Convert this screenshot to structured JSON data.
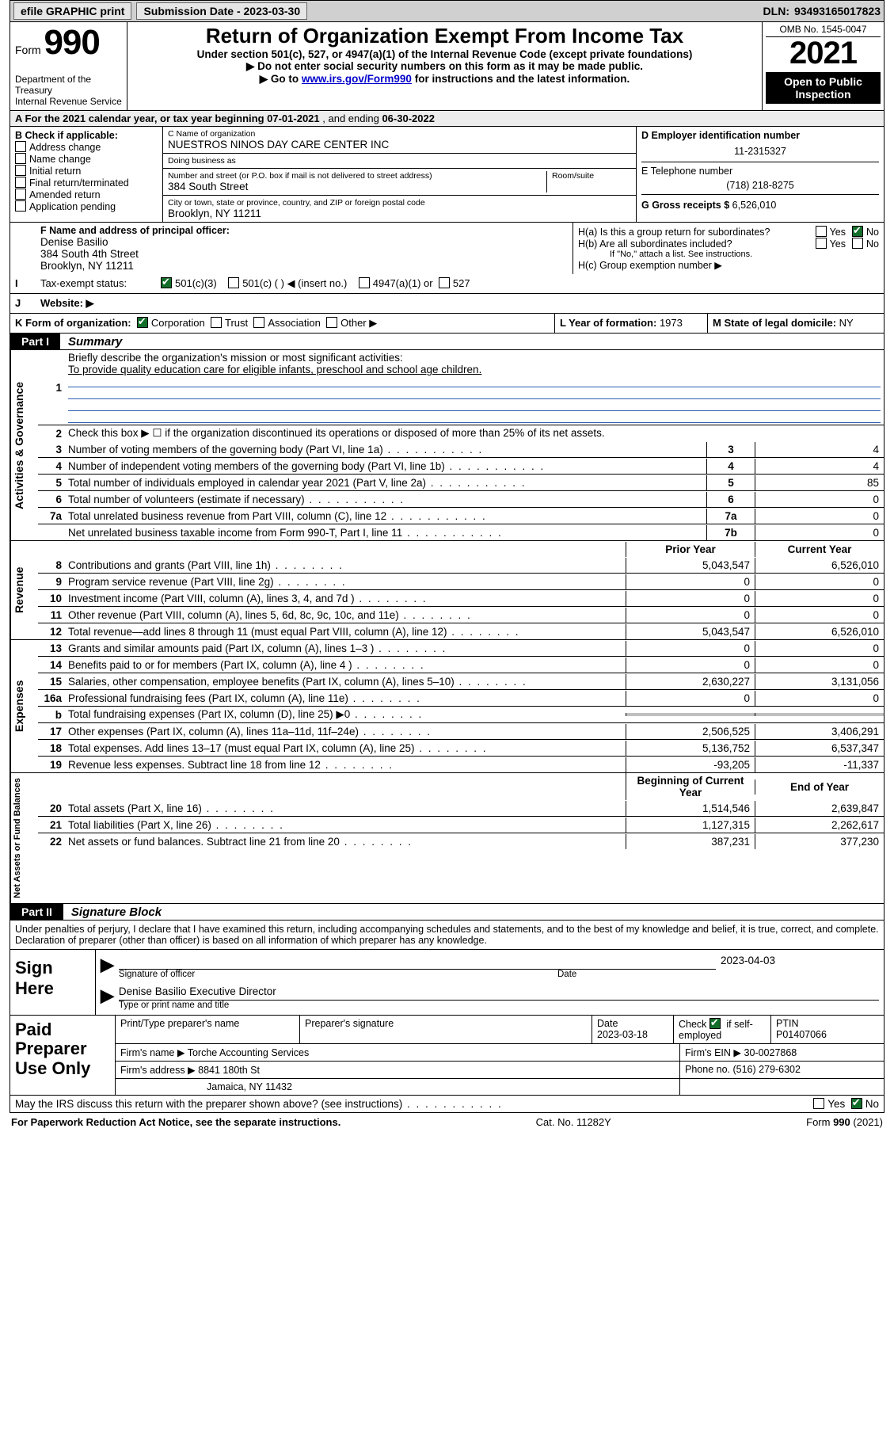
{
  "topbar": {
    "efile": "efile GRAPHIC print",
    "submission_label": "Submission Date",
    "submission_date": "2023-03-30",
    "dln_label": "DLN:",
    "dln": "93493165017823"
  },
  "header": {
    "form_word": "Form",
    "form_number": "990",
    "dept": "Department of the Treasury\nInternal Revenue Service",
    "title": "Return of Organization Exempt From Income Tax",
    "sub1": "Under section 501(c), 527, or 4947(a)(1) of the Internal Revenue Code (except private foundations)",
    "sub2": "Do not enter social security numbers on this form as it may be made public.",
    "sub3_pre": "Go to ",
    "sub3_link": "www.irs.gov/Form990",
    "sub3_post": " for instructions and the latest information.",
    "omb": "OMB No. 1545-0047",
    "year": "2021",
    "open": "Open to Public Inspection"
  },
  "rowA": {
    "text_pre": "A For the 2021 calendar year, or tax year beginning ",
    "begin": "07-01-2021",
    "mid": " , and ending ",
    "end": "06-30-2022"
  },
  "boxB": {
    "title": "B Check if applicable:",
    "items": [
      "Address change",
      "Name change",
      "Initial return",
      "Final return/terminated",
      "Amended return",
      "Application pending"
    ]
  },
  "boxC": {
    "label_name": "C Name of organization",
    "org_name": "NUESTROS NINOS DAY CARE CENTER INC",
    "dba_label": "Doing business as",
    "dba": "",
    "street_label": "Number and street (or P.O. box if mail is not delivered to street address)",
    "room_label": "Room/suite",
    "street": "384 South Street",
    "city_label": "City or town, state or province, country, and ZIP or foreign postal code",
    "city": "Brooklyn, NY  11211"
  },
  "boxD": {
    "label": "D Employer identification number",
    "ein": "11-2315327"
  },
  "boxE": {
    "label": "E Telephone number",
    "phone": "(718) 218-8275"
  },
  "boxG": {
    "label": "G Gross receipts $",
    "val": "6,526,010"
  },
  "boxF": {
    "label": "F Name and address of principal officer:",
    "line1": "Denise Basilio",
    "line2": "384 South 4th Street",
    "line3": "Brooklyn, NY  11211"
  },
  "boxH": {
    "h_a": "H(a)  Is this a group return for subordinates?",
    "h_b": "H(b)  Are all subordinates included?",
    "h_note": "If \"No,\" attach a list. See instructions.",
    "h_c": "H(c)  Group exemption number ▶",
    "yes": "Yes",
    "no": "No"
  },
  "boxI": {
    "label": "Tax-exempt status:",
    "opt1": "501(c)(3)",
    "opt2": "501(c) (  ) ◀ (insert no.)",
    "opt3": "4947(a)(1) or",
    "opt4": "527"
  },
  "boxJ": {
    "label": "Website: ▶"
  },
  "boxK": {
    "label": "K Form of organization:",
    "opts": [
      "Corporation",
      "Trust",
      "Association",
      "Other ▶"
    ]
  },
  "boxL": {
    "label": "L Year of formation:",
    "val": "1973"
  },
  "boxM": {
    "label": "M State of legal domicile:",
    "val": "NY"
  },
  "partI": {
    "tag": "Part I",
    "title": "Summary"
  },
  "summary": {
    "sectionA": "Activities & Governance",
    "sectionR": "Revenue",
    "sectionE": "Expenses",
    "sectionN": "Net Assets or Fund Balances",
    "l1_label": "Briefly describe the organization's mission or most significant activities:",
    "l1_text": "To provide quality education care for eligible infants, preschool and school age children.",
    "l2": "Check this box ▶ ☐  if the organization discontinued its operations or disposed of more than 25% of its net assets.",
    "lines_ag": [
      {
        "n": "3",
        "t": "Number of voting members of the governing body (Part VI, line 1a)",
        "box": "3",
        "v": "4"
      },
      {
        "n": "4",
        "t": "Number of independent voting members of the governing body (Part VI, line 1b)",
        "box": "4",
        "v": "4"
      },
      {
        "n": "5",
        "t": "Total number of individuals employed in calendar year 2021 (Part V, line 2a)",
        "box": "5",
        "v": "85"
      },
      {
        "n": "6",
        "t": "Total number of volunteers (estimate if necessary)",
        "box": "6",
        "v": "0"
      },
      {
        "n": "7a",
        "t": "Total unrelated business revenue from Part VIII, column (C), line 12",
        "box": "7a",
        "v": "0"
      },
      {
        "n": "",
        "t": "Net unrelated business taxable income from Form 990-T, Part I, line 11",
        "box": "7b",
        "v": "0"
      }
    ],
    "col_prior": "Prior Year",
    "col_curr": "Current Year",
    "rev": [
      {
        "n": "8",
        "t": "Contributions and grants (Part VIII, line 1h)",
        "p": "5,043,547",
        "c": "6,526,010"
      },
      {
        "n": "9",
        "t": "Program service revenue (Part VIII, line 2g)",
        "p": "0",
        "c": "0"
      },
      {
        "n": "10",
        "t": "Investment income (Part VIII, column (A), lines 3, 4, and 7d )",
        "p": "0",
        "c": "0"
      },
      {
        "n": "11",
        "t": "Other revenue (Part VIII, column (A), lines 5, 6d, 8c, 9c, 10c, and 11e)",
        "p": "0",
        "c": "0"
      },
      {
        "n": "12",
        "t": "Total revenue—add lines 8 through 11 (must equal Part VIII, column (A), line 12)",
        "p": "5,043,547",
        "c": "6,526,010"
      }
    ],
    "exp": [
      {
        "n": "13",
        "t": "Grants and similar amounts paid (Part IX, column (A), lines 1–3 )",
        "p": "0",
        "c": "0"
      },
      {
        "n": "14",
        "t": "Benefits paid to or for members (Part IX, column (A), line 4 )",
        "p": "0",
        "c": "0"
      },
      {
        "n": "15",
        "t": "Salaries, other compensation, employee benefits (Part IX, column (A), lines 5–10)",
        "p": "2,630,227",
        "c": "3,131,056"
      },
      {
        "n": "16a",
        "t": "Professional fundraising fees (Part IX, column (A), line 11e)",
        "p": "0",
        "c": "0"
      },
      {
        "n": "b",
        "t": "Total fundraising expenses (Part IX, column (D), line 25) ▶0",
        "p": "",
        "c": "",
        "grey": true
      },
      {
        "n": "17",
        "t": "Other expenses (Part IX, column (A), lines 11a–11d, 11f–24e)",
        "p": "2,506,525",
        "c": "3,406,291"
      },
      {
        "n": "18",
        "t": "Total expenses. Add lines 13–17 (must equal Part IX, column (A), line 25)",
        "p": "5,136,752",
        "c": "6,537,347"
      },
      {
        "n": "19",
        "t": "Revenue less expenses. Subtract line 18 from line 12",
        "p": "-93,205",
        "c": "-11,337"
      }
    ],
    "col_begin": "Beginning of Current Year",
    "col_end": "End of Year",
    "net": [
      {
        "n": "20",
        "t": "Total assets (Part X, line 16)",
        "p": "1,514,546",
        "c": "2,639,847"
      },
      {
        "n": "21",
        "t": "Total liabilities (Part X, line 26)",
        "p": "1,127,315",
        "c": "2,262,617"
      },
      {
        "n": "22",
        "t": "Net assets or fund balances. Subtract line 21 from line 20",
        "p": "387,231",
        "c": "377,230"
      }
    ]
  },
  "partII": {
    "tag": "Part II",
    "title": "Signature Block"
  },
  "perjury": "Under penalties of perjury, I declare that I have examined this return, including accompanying schedules and statements, and to the best of my knowledge and belief, it is true, correct, and complete. Declaration of preparer (other than officer) is based on all information of which preparer has any knowledge.",
  "sign": {
    "here": "Sign Here",
    "sig_label": "Signature of officer",
    "date_label": "Date",
    "date": "2023-04-03",
    "name": "Denise Basilio  Executive Director",
    "name_label": "Type or print name and title"
  },
  "prep": {
    "label": "Paid Preparer Use Only",
    "h1": "Print/Type preparer's name",
    "h2": "Preparer's signature",
    "h3": "Date",
    "h3v": "2023-03-18",
    "h4a": "Check",
    "h4b": "if self-employed",
    "h5": "PTIN",
    "h5v": "P01407066",
    "firm_name_l": "Firm's name  ▶",
    "firm_name": "Torche Accounting Services",
    "firm_ein_l": "Firm's EIN ▶",
    "firm_ein": "30-0027868",
    "firm_addr_l": "Firm's address ▶",
    "firm_addr1": "8841 180th St",
    "firm_addr2": "Jamaica, NY  11432",
    "phone_l": "Phone no.",
    "phone": "(516) 279-6302"
  },
  "discuss": {
    "q": "May the IRS discuss this return with the preparer shown above? (see instructions)",
    "yes": "Yes",
    "no": "No"
  },
  "footer": {
    "pra": "For Paperwork Reduction Act Notice, see the separate instructions.",
    "cat": "Cat. No. 11282Y",
    "form": "Form 990 (2021)"
  }
}
